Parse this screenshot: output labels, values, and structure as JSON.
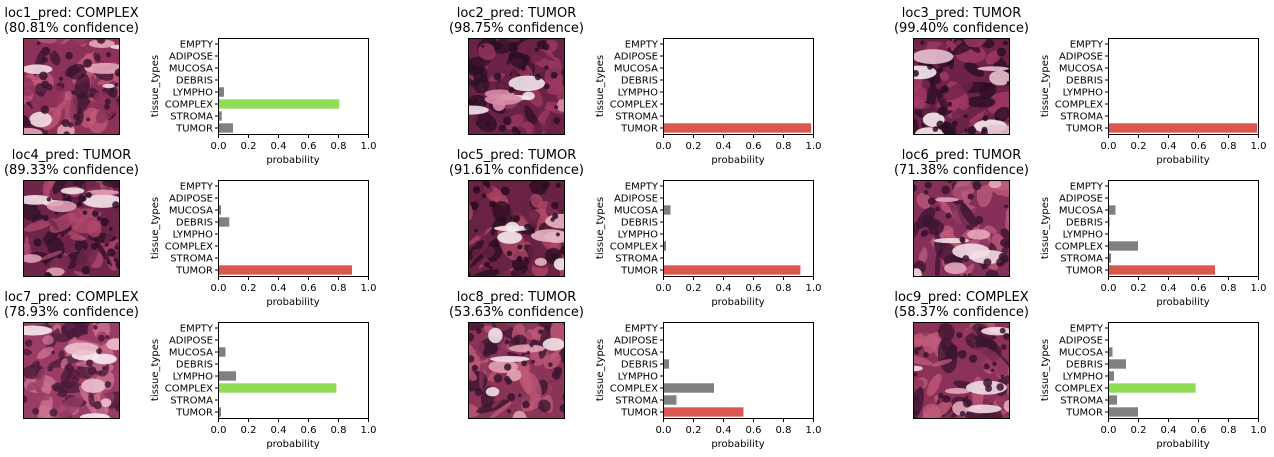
{
  "tissue_types": [
    "EMPTY",
    "ADIPOSE",
    "MUCOSA",
    "DEBRIS",
    "LYMPHO",
    "COMPLEX",
    "STROMA",
    "TUMOR"
  ],
  "colors": {
    "highlight_COMPLEX": "#8fdc55",
    "highlight_TUMOR": "#d9574f",
    "other": "#808080"
  },
  "tiles": [
    {
      "title": "loc1_pred: COMPLEX",
      "subtitle": "(80.81% confidence)",
      "palette": [
        "#3b1430",
        "#8c3258",
        "#c45a7a",
        "#e7a5ba",
        "#f4dde6"
      ]
    },
    {
      "title": "loc2_pred: TUMOR",
      "subtitle": "(98.75% confidence)",
      "palette": [
        "#2c0f26",
        "#6a2246",
        "#a03a62",
        "#d88da6",
        "#f3e6ec"
      ]
    },
    {
      "title": "loc3_pred: TUMOR",
      "subtitle": "(99.40% confidence)",
      "palette": [
        "#2a0e24",
        "#6d2348",
        "#a53c66",
        "#e6c2d0",
        "#f5ecef"
      ]
    },
    {
      "title": "loc4_pred: TUMOR",
      "subtitle": "(89.33% confidence)",
      "palette": [
        "#2e0f28",
        "#6f2449",
        "#b04a6e",
        "#e0a0b6",
        "#f2e4ea"
      ]
    },
    {
      "title": "loc5_pred: TUMOR",
      "subtitle": "(91.61% confidence)",
      "palette": [
        "#2a0d22",
        "#6a2244",
        "#b24a66",
        "#e6b4c2",
        "#f4e8ec"
      ]
    },
    {
      "title": "loc6_pred: TUMOR",
      "subtitle": "(71.38% confidence)",
      "palette": [
        "#3a1430",
        "#85305a",
        "#bf5c7e",
        "#e3a6bb",
        "#f3dfe7"
      ]
    },
    {
      "title": "loc7_pred: COMPLEX",
      "subtitle": "(78.93% confidence)",
      "palette": [
        "#4a1a3a",
        "#9a3c64",
        "#cf7594",
        "#ecc0cf",
        "#f8eaf0"
      ]
    },
    {
      "title": "loc8_pred: TUMOR",
      "subtitle": "(53.63% confidence)",
      "palette": [
        "#3a1430",
        "#8a3458",
        "#c05a78",
        "#e2a2b4",
        "#f3e2e8"
      ]
    },
    {
      "title": "loc9_pred: COMPLEX",
      "subtitle": "(58.37% confidence)",
      "palette": [
        "#3b1430",
        "#8c3258",
        "#c25c7c",
        "#e4a8bc",
        "#f2dde6"
      ]
    }
  ],
  "chart_data": [
    {
      "type": "bar",
      "orientation": "horizontal",
      "categories": [
        "EMPTY",
        "ADIPOSE",
        "MUCOSA",
        "DEBRIS",
        "LYMPHO",
        "COMPLEX",
        "STROMA",
        "TUMOR"
      ],
      "values": [
        0.0,
        0.0,
        0.005,
        0.005,
        0.04,
        0.8081,
        0.025,
        0.1
      ],
      "highlight": "COMPLEX",
      "xlabel": "probability",
      "ylabel": "tissue_types",
      "xlim": [
        0,
        1
      ],
      "xticks": [
        "0.0",
        "0.2",
        "0.4",
        "0.6",
        "0.8",
        "1.0"
      ]
    },
    {
      "type": "bar",
      "orientation": "horizontal",
      "categories": [
        "EMPTY",
        "ADIPOSE",
        "MUCOSA",
        "DEBRIS",
        "LYMPHO",
        "COMPLEX",
        "STROMA",
        "TUMOR"
      ],
      "values": [
        0.0,
        0.0,
        0.002,
        0.002,
        0.0,
        0.005,
        0.003,
        0.9875
      ],
      "highlight": "TUMOR",
      "xlabel": "probability",
      "ylabel": "tissue_types",
      "xlim": [
        0,
        1
      ],
      "xticks": [
        "0.0",
        "0.2",
        "0.4",
        "0.6",
        "0.8",
        "1.0"
      ]
    },
    {
      "type": "bar",
      "orientation": "horizontal",
      "categories": [
        "EMPTY",
        "ADIPOSE",
        "MUCOSA",
        "DEBRIS",
        "LYMPHO",
        "COMPLEX",
        "STROMA",
        "TUMOR"
      ],
      "values": [
        0.0,
        0.0,
        0.001,
        0.001,
        0.0,
        0.002,
        0.002,
        0.994
      ],
      "highlight": "TUMOR",
      "xlabel": "probability",
      "ylabel": "tissue_types",
      "xlim": [
        0,
        1
      ],
      "xticks": [
        "0.0",
        "0.2",
        "0.4",
        "0.6",
        "0.8",
        "1.0"
      ]
    },
    {
      "type": "bar",
      "orientation": "horizontal",
      "categories": [
        "EMPTY",
        "ADIPOSE",
        "MUCOSA",
        "DEBRIS",
        "LYMPHO",
        "COMPLEX",
        "STROMA",
        "TUMOR"
      ],
      "values": [
        0.0,
        0.0,
        0.02,
        0.075,
        0.0,
        0.005,
        0.005,
        0.8933
      ],
      "highlight": "TUMOR",
      "xlabel": "probability",
      "ylabel": "tissue_types",
      "xlim": [
        0,
        1
      ],
      "xticks": [
        "0.0",
        "0.2",
        "0.4",
        "0.6",
        "0.8",
        "1.0"
      ]
    },
    {
      "type": "bar",
      "orientation": "horizontal",
      "categories": [
        "EMPTY",
        "ADIPOSE",
        "MUCOSA",
        "DEBRIS",
        "LYMPHO",
        "COMPLEX",
        "STROMA",
        "TUMOR"
      ],
      "values": [
        0.0,
        0.0,
        0.05,
        0.005,
        0.0,
        0.02,
        0.005,
        0.9161
      ],
      "highlight": "TUMOR",
      "xlabel": "probability",
      "ylabel": "tissue_types",
      "xlim": [
        0,
        1
      ],
      "xticks": [
        "0.0",
        "0.2",
        "0.4",
        "0.6",
        "0.8",
        "1.0"
      ]
    },
    {
      "type": "bar",
      "orientation": "horizontal",
      "categories": [
        "EMPTY",
        "ADIPOSE",
        "MUCOSA",
        "DEBRIS",
        "LYMPHO",
        "COMPLEX",
        "STROMA",
        "TUMOR"
      ],
      "values": [
        0.0,
        0.0,
        0.05,
        0.01,
        0.005,
        0.2,
        0.02,
        0.7138
      ],
      "highlight": "TUMOR",
      "xlabel": "probability",
      "ylabel": "tissue_types",
      "xlim": [
        0,
        1
      ],
      "xticks": [
        "0.0",
        "0.2",
        "0.4",
        "0.6",
        "0.8",
        "1.0"
      ]
    },
    {
      "type": "bar",
      "orientation": "horizontal",
      "categories": [
        "EMPTY",
        "ADIPOSE",
        "MUCOSA",
        "DEBRIS",
        "LYMPHO",
        "COMPLEX",
        "STROMA",
        "TUMOR"
      ],
      "values": [
        0.0,
        0.0,
        0.05,
        0.005,
        0.12,
        0.7893,
        0.005,
        0.02
      ],
      "highlight": "COMPLEX",
      "xlabel": "probability",
      "ylabel": "tissue_types",
      "xlim": [
        0,
        1
      ],
      "xticks": [
        "0.0",
        "0.2",
        "0.4",
        "0.6",
        "0.8",
        "1.0"
      ]
    },
    {
      "type": "bar",
      "orientation": "horizontal",
      "categories": [
        "EMPTY",
        "ADIPOSE",
        "MUCOSA",
        "DEBRIS",
        "LYMPHO",
        "COMPLEX",
        "STROMA",
        "TUMOR"
      ],
      "values": [
        0.0,
        0.0,
        0.005,
        0.04,
        0.005,
        0.34,
        0.09,
        0.5363
      ],
      "highlight": "TUMOR",
      "xlabel": "probability",
      "ylabel": "tissue_types",
      "xlim": [
        0,
        1
      ],
      "xticks": [
        "0.0",
        "0.2",
        "0.4",
        "0.6",
        "0.8",
        "1.0"
      ]
    },
    {
      "type": "bar",
      "orientation": "horizontal",
      "categories": [
        "EMPTY",
        "ADIPOSE",
        "MUCOSA",
        "DEBRIS",
        "LYMPHO",
        "COMPLEX",
        "STROMA",
        "TUMOR"
      ],
      "values": [
        0.0,
        0.0,
        0.03,
        0.12,
        0.04,
        0.5837,
        0.06,
        0.2
      ],
      "highlight": "COMPLEX",
      "xlabel": "probability",
      "ylabel": "tissue_types",
      "xlim": [
        0,
        1
      ],
      "xticks": [
        "0.0",
        "0.2",
        "0.4",
        "0.6",
        "0.8",
        "1.0"
      ]
    }
  ]
}
